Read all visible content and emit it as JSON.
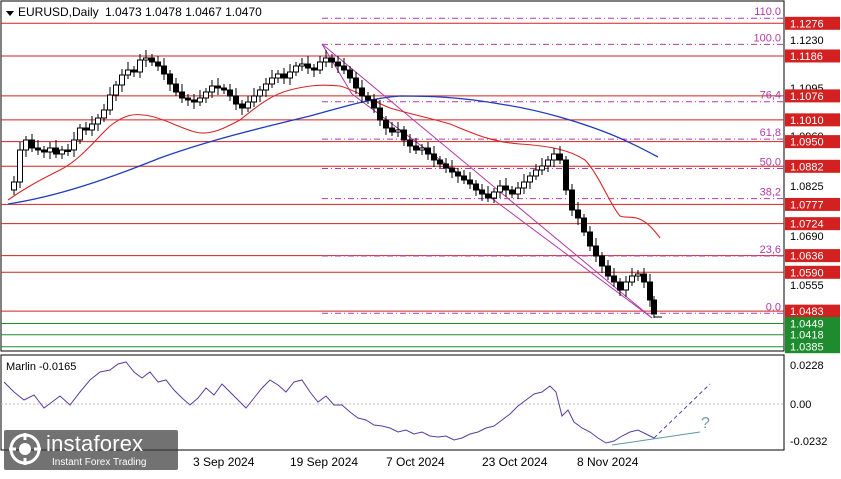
{
  "header": {
    "symbol": "EURUSD,Daily",
    "ohlc": "1.0473 1.0478 1.0467 1.0470"
  },
  "price_axis": {
    "ticks": [
      "1.1230",
      "1.1095",
      "1.0960",
      "1.0825",
      "1.0690",
      "1.0555"
    ]
  },
  "horizontal_levels": [
    {
      "label": "1.1276",
      "price": 1.1276,
      "color": "#d32121"
    },
    {
      "label": "1.1186",
      "price": 1.1186,
      "color": "#d32121"
    },
    {
      "label": "1.1076",
      "price": 1.1076,
      "color": "#d32121"
    },
    {
      "label": "1.1010",
      "price": 1.101,
      "color": "#d32121"
    },
    {
      "label": "1.0950",
      "price": 1.095,
      "color": "#d32121"
    },
    {
      "label": "1.0882",
      "price": 1.0882,
      "color": "#d32121"
    },
    {
      "label": "1.0777",
      "price": 1.0777,
      "color": "#d32121"
    },
    {
      "label": "1.0724",
      "price": 1.0724,
      "color": "#d32121"
    },
    {
      "label": "1.0636",
      "price": 1.0636,
      "color": "#d32121"
    },
    {
      "label": "1.0590",
      "price": 1.059,
      "color": "#d32121"
    },
    {
      "label": "1.0483",
      "price": 1.0483,
      "color": "#d32121"
    },
    {
      "label": "1.0449",
      "price": 1.0449,
      "color": "#1e8c2e"
    },
    {
      "label": "1.0418",
      "price": 1.0418,
      "color": "#1e8c2e"
    },
    {
      "label": "1.0385",
      "price": 1.0385,
      "color": "#1e8c2e"
    }
  ],
  "fibonacci": [
    {
      "label": "110.0",
      "price": 1.129
    },
    {
      "label": "100.0",
      "price": 1.1218
    },
    {
      "label": "76,4",
      "price": 1.106
    },
    {
      "label": "61,8",
      "price": 1.0957
    },
    {
      "label": "50,0",
      "price": 1.0876
    },
    {
      "label": "38,2",
      "price": 1.0793
    },
    {
      "label": "23,6",
      "price": 1.0635
    },
    {
      "label": "0.0",
      "price": 1.0477
    }
  ],
  "oscillator": {
    "title": "Marlin -0.0165",
    "ticks": [
      "0.0228",
      "0.00",
      "-0.0232"
    ],
    "question_mark": "?"
  },
  "time_axis": {
    "labels": [
      "3 Sep 2024",
      "19 Sep 2024",
      "7 Oct 2024",
      "23 Oct 2024",
      "8 Nov 2024"
    ]
  },
  "watermark": {
    "brand": "instaforex",
    "tagline": "Instant Forex Trading"
  },
  "colors": {
    "level_red": "#d32121",
    "level_green": "#1e8c2e",
    "fibo": "#b03aa8",
    "ma_fast": "#d62728",
    "ma_slow": "#1f3bbf",
    "oscillator_line": "#5b3c9e"
  }
}
